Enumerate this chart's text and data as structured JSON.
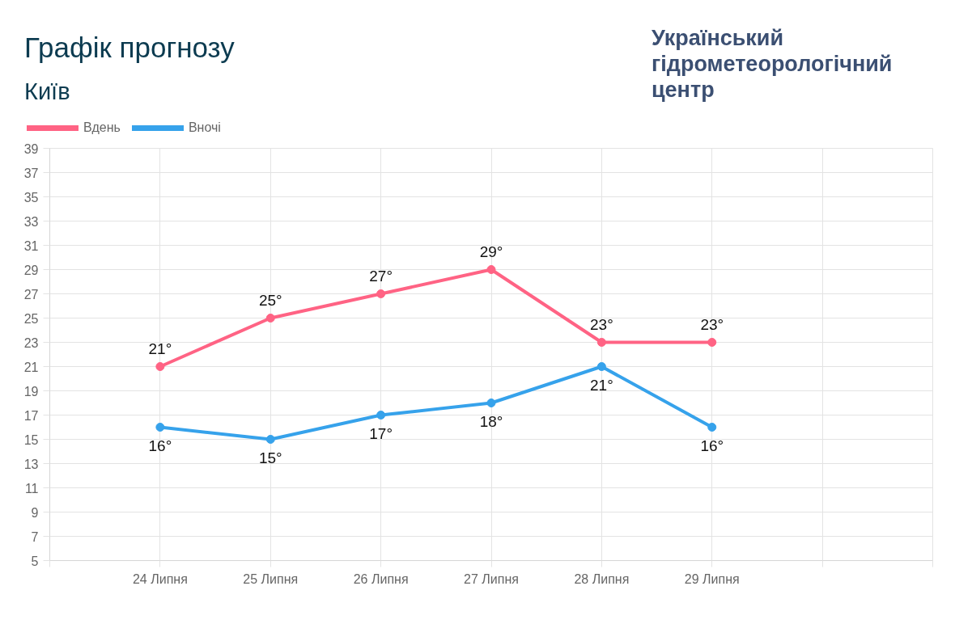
{
  "chart_data": {
    "type": "line",
    "title": "Графік прогнозу",
    "subtitle": "Київ",
    "annotations": [
      "Український гідрометеорологічний центр"
    ],
    "categories": [
      null,
      "24 Липня",
      "25 Липня",
      "26 Липня",
      "27 Липня",
      "28 Липня",
      "29 Липня",
      null,
      null
    ],
    "series": [
      {
        "name": "Вдень",
        "color": "#ff6384",
        "values": [
          null,
          21,
          25,
          27,
          29,
          23,
          23,
          null,
          null
        ],
        "value_labels": [
          null,
          "21°",
          "25°",
          "27°",
          "29°",
          "23°",
          "23°",
          null,
          null
        ]
      },
      {
        "name": "Вночі",
        "color": "#36a2eb",
        "values": [
          null,
          16,
          15,
          17,
          18,
          21,
          16,
          null,
          null
        ],
        "value_labels": [
          null,
          "16°",
          "15°",
          "17°",
          "18°",
          "21°",
          "16°",
          null,
          null
        ]
      }
    ],
    "ylim": [
      5,
      39
    ],
    "yticks": [
      5,
      7,
      9,
      11,
      13,
      15,
      17,
      19,
      21,
      23,
      25,
      27,
      29,
      31,
      33,
      35,
      37,
      39
    ],
    "grid": true,
    "legend": "top left",
    "marker": "circle",
    "line_style": "solid"
  }
}
